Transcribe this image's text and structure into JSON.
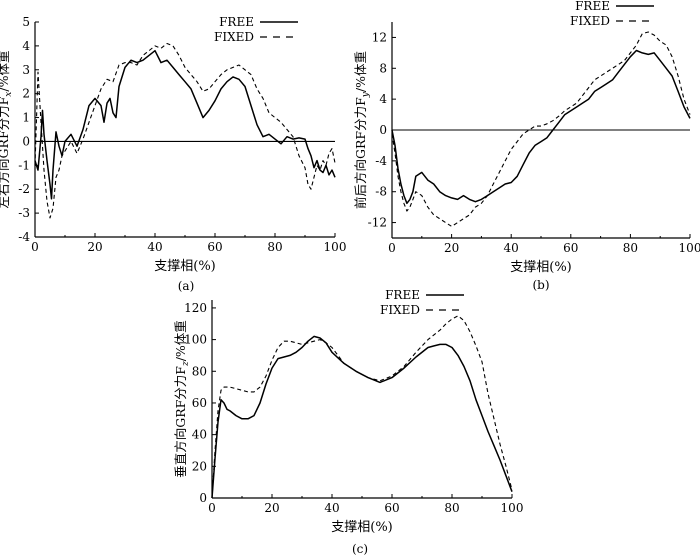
{
  "chart_data": [
    {
      "id": "a",
      "type": "line",
      "caption": "(a)",
      "xlabel": "支撑相(%)",
      "ylabel": "左右方向GRF分力F",
      "ylabel_sub": "x",
      "ylabel_unit": "/%体重",
      "xlim": [
        0,
        100
      ],
      "ylim": [
        -4,
        5
      ],
      "xticks": [
        0,
        20,
        40,
        60,
        80,
        100
      ],
      "yticks": [
        -4,
        -3,
        -2,
        -1,
        0,
        1,
        2,
        3,
        4,
        5
      ],
      "zero_line": true,
      "legend": [
        "FREE",
        "FIXED"
      ],
      "legend_placement": "top-right",
      "series": [
        {
          "name": "FREE",
          "style": "solid",
          "x": [
            0,
            1,
            2,
            2.5,
            3,
            4,
            5,
            5.5,
            6,
            7,
            8,
            9,
            10,
            12,
            14,
            16,
            18,
            20,
            22,
            23,
            24,
            25,
            26,
            27,
            28,
            30,
            32,
            34,
            36,
            38,
            40,
            42,
            44,
            46,
            48,
            50,
            52,
            54,
            56,
            58,
            60,
            62,
            64,
            66,
            68,
            70,
            72,
            74,
            76,
            78,
            80,
            82,
            84,
            86,
            88,
            90,
            91,
            92,
            93,
            94,
            95,
            96,
            97,
            98,
            99,
            100
          ],
          "y": [
            -0.8,
            -1.2,
            0.2,
            1.3,
            0.3,
            -0.8,
            -1.8,
            -2.4,
            -1.2,
            0.4,
            -0.2,
            -0.6,
            0,
            0.3,
            -0.2,
            0.5,
            1.5,
            1.8,
            1.5,
            0.8,
            1.6,
            1.8,
            1.2,
            1.0,
            2.3,
            3.1,
            3.4,
            3.3,
            3.4,
            3.6,
            3.8,
            3.3,
            3.4,
            3.1,
            2.8,
            2.5,
            2.2,
            1.6,
            1.0,
            1.3,
            1.7,
            2.2,
            2.5,
            2.7,
            2.6,
            2.3,
            1.5,
            0.7,
            0.2,
            0.3,
            0.1,
            -0.1,
            0.2,
            0.1,
            0.15,
            0.1,
            -0.3,
            -0.6,
            -1.1,
            -0.8,
            -1.2,
            -1.3,
            -1.0,
            -1.4,
            -1.2,
            -1.5
          ]
        },
        {
          "name": "FIXED",
          "style": "dashed",
          "x": [
            0,
            1,
            2,
            3,
            4,
            5,
            6,
            7,
            8,
            9,
            10,
            12,
            14,
            16,
            18,
            20,
            22,
            24,
            26,
            28,
            30,
            32,
            34,
            36,
            38,
            40,
            42,
            44,
            46,
            48,
            50,
            52,
            54,
            56,
            58,
            60,
            62,
            64,
            66,
            68,
            70,
            72,
            74,
            76,
            78,
            80,
            82,
            84,
            86,
            88,
            90,
            91,
            92,
            93,
            94,
            95,
            96,
            97,
            98,
            99,
            100
          ],
          "y": [
            -1.0,
            2.9,
            0.8,
            -1.2,
            -2.5,
            -3.2,
            -2.8,
            -1.5,
            -1.2,
            -0.6,
            -0.4,
            0,
            -0.5,
            0.1,
            0.8,
            1.5,
            2.2,
            2.6,
            2.5,
            3.2,
            3.3,
            3.3,
            3.2,
            3.6,
            3.8,
            4.0,
            3.9,
            4.1,
            4.0,
            3.6,
            3.1,
            2.8,
            2.5,
            2.1,
            2.2,
            2.5,
            2.8,
            3.0,
            3.1,
            3.2,
            3.0,
            2.8,
            2.2,
            1.8,
            1.2,
            1.0,
            0.8,
            0.5,
            0.2,
            -0.6,
            -1.1,
            -1.8,
            -2.0,
            -1.5,
            -1.0,
            -1.2,
            -0.8,
            -1.0,
            -0.5,
            -0.3,
            -0.9
          ]
        }
      ]
    },
    {
      "id": "b",
      "type": "line",
      "caption": "(b)",
      "xlabel": "支撑相(%)",
      "ylabel": "前后方向GRF分力F",
      "ylabel_sub": "y",
      "ylabel_unit": "/%体重",
      "xlim": [
        0,
        100
      ],
      "ylim": [
        -14,
        14
      ],
      "xticks": [
        0,
        20,
        40,
        60,
        80,
        100
      ],
      "yticks": [
        -12,
        -8,
        -4,
        0,
        4,
        8,
        12
      ],
      "zero_line": true,
      "legend": [
        "FREE",
        "FIXED"
      ],
      "legend_placement": "top-right",
      "series": [
        {
          "name": "FREE",
          "style": "solid",
          "x": [
            0,
            1,
            2,
            3,
            4,
            5,
            6,
            7,
            8,
            10,
            12,
            14,
            16,
            18,
            20,
            22,
            24,
            26,
            28,
            30,
            32,
            34,
            36,
            38,
            40,
            42,
            44,
            46,
            48,
            50,
            52,
            54,
            56,
            58,
            60,
            62,
            64,
            66,
            68,
            70,
            72,
            74,
            76,
            78,
            80,
            82,
            84,
            86,
            88,
            90,
            92,
            94,
            96,
            98,
            100
          ],
          "y": [
            0,
            -2,
            -5,
            -7,
            -8.5,
            -9.5,
            -9,
            -8,
            -6,
            -5.5,
            -6.5,
            -7,
            -8,
            -8.5,
            -8.8,
            -9,
            -8.5,
            -9,
            -9.3,
            -9,
            -8.5,
            -8,
            -7.5,
            -7,
            -6.8,
            -6,
            -4.5,
            -3,
            -2,
            -1.5,
            -1,
            0,
            1,
            2,
            2.5,
            3,
            3.5,
            4,
            5,
            5.5,
            6,
            6.5,
            7.5,
            8.5,
            9.5,
            10.3,
            10,
            9.8,
            10,
            9,
            8,
            7,
            5,
            3,
            1.5
          ]
        },
        {
          "name": "FIXED",
          "style": "dashed",
          "x": [
            0,
            1,
            2,
            3,
            4,
            5,
            6,
            7,
            8,
            10,
            12,
            14,
            16,
            18,
            20,
            22,
            24,
            26,
            28,
            30,
            32,
            34,
            36,
            38,
            40,
            42,
            44,
            46,
            48,
            50,
            52,
            54,
            56,
            58,
            60,
            62,
            64,
            66,
            68,
            70,
            72,
            74,
            76,
            78,
            80,
            82,
            84,
            86,
            88,
            90,
            92,
            94,
            96,
            98,
            100
          ],
          "y": [
            -0.5,
            -3,
            -6,
            -8,
            -9.5,
            -10.5,
            -10,
            -9,
            -8,
            -8.5,
            -10,
            -11,
            -11.5,
            -12,
            -12.5,
            -12,
            -11.5,
            -11,
            -10,
            -9.5,
            -8.5,
            -7,
            -5.5,
            -4,
            -2.5,
            -1.5,
            -0.5,
            0,
            0.5,
            0.5,
            0.8,
            1.2,
            1.8,
            2.5,
            3,
            3.5,
            4.5,
            5.5,
            6.5,
            7,
            7.5,
            8,
            8.5,
            9,
            10,
            11,
            12.5,
            12.7,
            12.3,
            11.5,
            11,
            9.5,
            7,
            4,
            2
          ]
        }
      ]
    },
    {
      "id": "c",
      "type": "line",
      "caption": "(c)",
      "xlabel": "支撑相(%)",
      "ylabel": "垂直方向GRF分力F",
      "ylabel_sub": "z",
      "ylabel_unit": "/%体重",
      "xlim": [
        0,
        100
      ],
      "ylim": [
        0,
        125
      ],
      "xticks": [
        0,
        20,
        40,
        60,
        80,
        100
      ],
      "yticks": [
        0,
        20,
        40,
        60,
        80,
        100,
        120
      ],
      "zero_line": false,
      "legend": [
        "FREE",
        "FIXED"
      ],
      "legend_placement": "top-right",
      "series": [
        {
          "name": "FREE",
          "style": "solid",
          "x": [
            0,
            1,
            2,
            3,
            4,
            5,
            6,
            8,
            10,
            12,
            14,
            16,
            18,
            20,
            22,
            24,
            26,
            28,
            30,
            32,
            34,
            36,
            38,
            40,
            44,
            48,
            52,
            56,
            60,
            64,
            68,
            72,
            74,
            76,
            78,
            80,
            82,
            84,
            86,
            88,
            90,
            92,
            94,
            96,
            98,
            100
          ],
          "y": [
            0,
            25,
            48,
            62,
            60,
            56,
            55,
            52,
            50,
            50,
            52,
            60,
            72,
            82,
            88,
            89,
            90,
            92,
            95,
            99,
            102,
            101,
            98,
            92,
            85,
            80,
            76,
            73,
            76,
            82,
            89,
            95,
            96,
            97,
            97,
            95,
            90,
            83,
            74,
            62,
            52,
            42,
            33,
            24,
            14,
            4
          ]
        },
        {
          "name": "FIXED",
          "style": "dashed",
          "x": [
            0,
            1,
            2,
            3,
            4,
            6,
            8,
            10,
            12,
            14,
            16,
            18,
            20,
            22,
            24,
            26,
            28,
            30,
            32,
            34,
            36,
            38,
            40,
            44,
            48,
            52,
            56,
            60,
            64,
            68,
            72,
            76,
            78,
            80,
            82,
            84,
            86,
            88,
            90,
            92,
            94,
            96,
            98,
            100
          ],
          "y": [
            0,
            30,
            55,
            68,
            70,
            70,
            69,
            68,
            67,
            67,
            70,
            77,
            87,
            95,
            99,
            99,
            98,
            97,
            98,
            99,
            100,
            98,
            95,
            85,
            80,
            76,
            74,
            77,
            83,
            92,
            100,
            106,
            110,
            113,
            115,
            112,
            105,
            96,
            86,
            66,
            50,
            34,
            20,
            5
          ]
        }
      ]
    }
  ]
}
